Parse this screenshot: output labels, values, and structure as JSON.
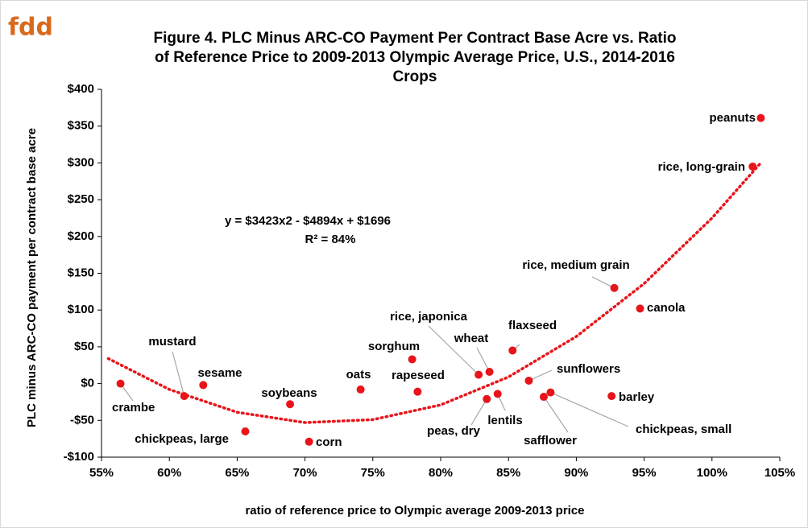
{
  "logo": "fdd",
  "chart_data": {
    "type": "scatter",
    "title": [
      "Figure 4. PLC Minus ARC-CO Payment Per Contract Base Acre vs. Ratio",
      "of Reference Price to 2009-2013 Olympic Average Price, U.S., 2014-2016",
      "Crops"
    ],
    "x_label": "ratio of reference price to Olympic average 2009-2013 price",
    "y_label": "PLC minus ARC-CO payment per contract base acre",
    "annotations": [
      "y = $3423x2 - $4894x + $1696",
      "R² = 84%"
    ],
    "color": "#e8141a",
    "xlim": [
      55,
      105
    ],
    "xticks": [
      {
        "value": 55,
        "label": "55%"
      },
      {
        "value": 60,
        "label": "60%"
      },
      {
        "value": 65,
        "label": "65%"
      },
      {
        "value": 70,
        "label": "70%"
      },
      {
        "value": 75,
        "label": "75%"
      },
      {
        "value": 80,
        "label": "80%"
      },
      {
        "value": 85,
        "label": "85%"
      },
      {
        "value": 90,
        "label": "90%"
      },
      {
        "value": 95,
        "label": "95%"
      },
      {
        "value": 100,
        "label": "100%"
      },
      {
        "value": 105,
        "label": "105%"
      }
    ],
    "ylim": [
      -100,
      400
    ],
    "yticks": [
      {
        "value": -100,
        "label": "-$100"
      },
      {
        "value": -50,
        "label": "-$50"
      },
      {
        "value": 0,
        "label": "$0"
      },
      {
        "value": 50,
        "label": "$50"
      },
      {
        "value": 100,
        "label": "$100"
      },
      {
        "value": 150,
        "label": "$150"
      },
      {
        "value": 200,
        "label": "$200"
      },
      {
        "value": 250,
        "label": "$250"
      },
      {
        "value": 300,
        "label": "$300"
      },
      {
        "value": 350,
        "label": "$350"
      },
      {
        "value": 400,
        "label": "$400"
      }
    ],
    "labels": [
      "peanuts",
      "rice, long-grain",
      "rice, medium grain",
      "canola",
      "flaxseed",
      "wheat",
      "rice, japonica",
      "sorghum",
      "sunflowers",
      "rapeseed",
      "oats",
      "soybeans",
      "sesame",
      "mustard",
      "crambe",
      "chickpeas, large",
      "corn",
      "peas, dry",
      "lentils",
      "safflower",
      "chickpeas, small",
      "barley"
    ],
    "x": [
      103.6,
      103.0,
      92.8,
      94.7,
      85.3,
      83.6,
      82.8,
      77.9,
      86.5,
      78.3,
      74.1,
      68.9,
      62.5,
      61.1,
      56.4,
      65.6,
      70.3,
      83.4,
      84.2,
      87.6,
      88.1,
      92.6
    ],
    "y": [
      361,
      295,
      130,
      102,
      45,
      16,
      12,
      33,
      4,
      -11,
      -8,
      -28,
      -2,
      -17,
      0,
      -65,
      -79,
      -21,
      -14,
      -18,
      -12,
      -17
    ],
    "trendline": {
      "x": [
        55.5,
        60,
        65,
        70,
        75,
        80,
        85,
        90,
        95,
        100,
        103.5
      ],
      "y": [
        34,
        -8,
        -39,
        -53,
        -49,
        -29,
        9,
        64,
        136,
        225,
        298
      ]
    }
  }
}
